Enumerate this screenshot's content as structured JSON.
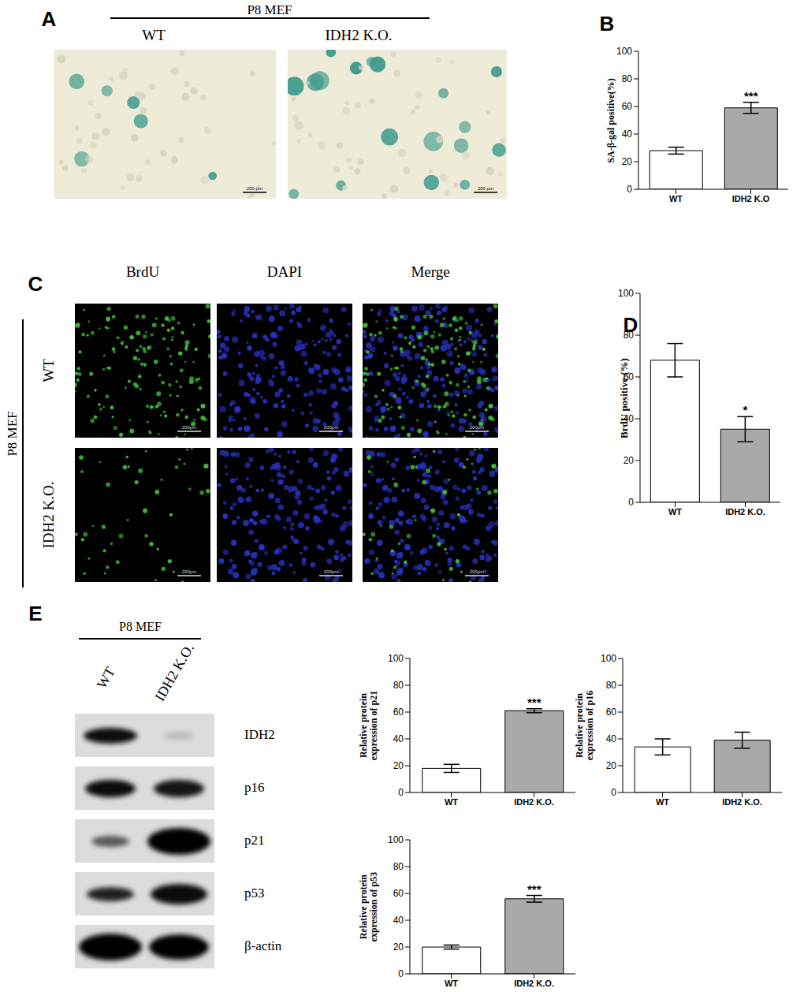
{
  "figure": {
    "panel_labels": [
      "A",
      "B",
      "C",
      "D",
      "E"
    ],
    "A": {
      "group": "P8 MEF",
      "images": [
        "WT",
        "IDH2 K.O."
      ],
      "scale_bar": "200 μm"
    },
    "C": {
      "group": "P8 MEF",
      "columns": [
        "BrdU",
        "DAPI",
        "Merge"
      ],
      "rows": [
        "WT",
        "IDH2 K.O."
      ],
      "scale_bar": "200μm"
    },
    "E": {
      "group": "P8 MEF",
      "lanes": [
        "WT",
        "IDH2 K.O."
      ],
      "blots": [
        "IDH2",
        "p16",
        "p21",
        "p53",
        "β-actin"
      ]
    }
  },
  "chart_data": [
    {
      "type": "bar",
      "ylabel": "SA-β-gal positive(%)",
      "categories": [
        "WT",
        "IDH2 K.O"
      ],
      "values": [
        28,
        59
      ],
      "errors": [
        2.5,
        4
      ],
      "colors": [
        "#ffffff",
        "#a9a9a9"
      ],
      "ylim": [
        0,
        100
      ],
      "yticks": [
        0,
        20,
        40,
        60,
        80,
        100
      ],
      "annotations": [
        {
          "category": "IDH2 K.O",
          "text": "***"
        }
      ]
    },
    {
      "type": "bar",
      "ylabel": "BrdU positive (%)",
      "categories": [
        "WT",
        "IDH2 K.O."
      ],
      "values": [
        68,
        35
      ],
      "errors": [
        8,
        6
      ],
      "colors": [
        "#ffffff",
        "#a9a9a9"
      ],
      "ylim": [
        0,
        100
      ],
      "yticks": [
        0,
        20,
        40,
        60,
        80,
        100
      ],
      "annotations": [
        {
          "category": "IDH2 K.O.",
          "text": "*"
        }
      ]
    },
    {
      "type": "bar",
      "ylabel": "Relative protein expression of p21",
      "categories": [
        "WT",
        "IDH2 K.O."
      ],
      "values": [
        18,
        61
      ],
      "errors": [
        3,
        1.5
      ],
      "colors": [
        "#ffffff",
        "#a9a9a9"
      ],
      "ylim": [
        0,
        100
      ],
      "yticks": [
        0,
        20,
        40,
        60,
        80,
        100
      ],
      "annotations": [
        {
          "category": "IDH2 K.O.",
          "text": "***"
        }
      ]
    },
    {
      "type": "bar",
      "ylabel": "Relative protein expression of p16",
      "categories": [
        "WT",
        "IDH2 K.O."
      ],
      "values": [
        34,
        39
      ],
      "errors": [
        6,
        6
      ],
      "colors": [
        "#ffffff",
        "#a9a9a9"
      ],
      "ylim": [
        0,
        100
      ],
      "yticks": [
        0,
        20,
        40,
        60,
        80,
        100
      ]
    },
    {
      "type": "bar",
      "ylabel": "Relative protein expression of p53",
      "categories": [
        "WT",
        "IDH2 K.O."
      ],
      "values": [
        20,
        56
      ],
      "errors": [
        1.5,
        2.5
      ],
      "colors": [
        "#ffffff",
        "#a9a9a9"
      ],
      "ylim": [
        0,
        100
      ],
      "yticks": [
        0,
        20,
        40,
        60,
        80,
        100
      ],
      "annotations": [
        {
          "category": "IDH2 K.O.",
          "text": "***"
        }
      ]
    }
  ]
}
